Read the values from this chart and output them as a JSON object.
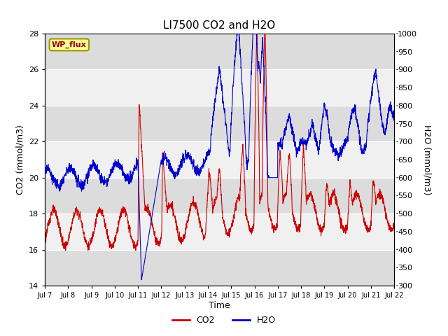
{
  "title": "LI7500 CO2 and H2O",
  "xlabel": "Time",
  "ylabel_left": "CO2 (mmol/m3)",
  "ylabel_right": "H2O (mmol/m3)",
  "ylim_left": [
    14,
    28
  ],
  "ylim_right": [
    300,
    1000
  ],
  "yticks_left": [
    14,
    16,
    18,
    20,
    22,
    24,
    26,
    28
  ],
  "yticks_right": [
    300,
    350,
    400,
    450,
    500,
    550,
    600,
    650,
    700,
    750,
    800,
    850,
    900,
    950,
    1000
  ],
  "xtick_labels": [
    "Jul 7",
    "Jul 8",
    "Jul 9",
    "Jul 10",
    "Jul 11",
    "Jul 12",
    "Jul 13",
    "Jul 14",
    "Jul 15",
    "Jul 16",
    "Jul 17",
    "Jul 18",
    "Jul 19",
    "Jul 20",
    "Jul 21",
    "Jul 22"
  ],
  "co2_color": "#cc0000",
  "h2o_color": "#0000cc",
  "legend_co2": "CO2",
  "legend_h2o": "H2O",
  "site_label": "WP_flux",
  "site_label_bg": "#ffff99",
  "site_label_border": "#999900",
  "bg_band_light": "#f0f0f0",
  "bg_band_dark": "#dcdcdc",
  "grid_color": "#ffffff"
}
